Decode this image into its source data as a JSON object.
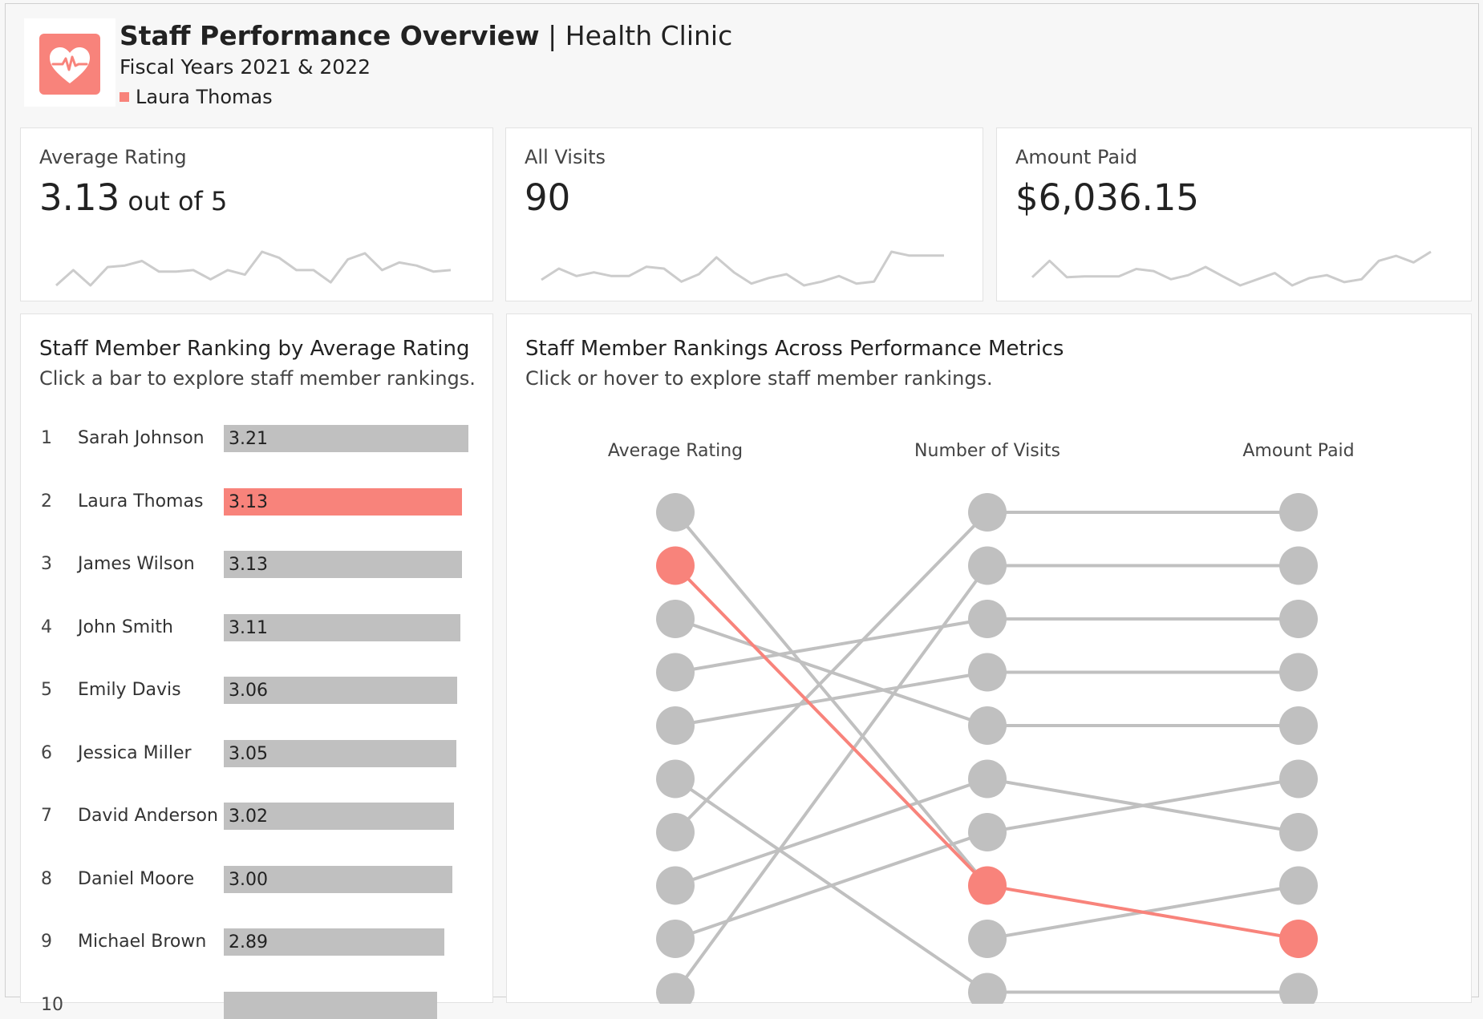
{
  "header": {
    "title_bold": "Staff Performance Overview",
    "title_rest": " | Health Clinic",
    "subtitle": "Fiscal Years 2021 & 2022",
    "selected_staff": "Laura Thomas",
    "logo_icon": "heart-pulse-icon",
    "accent_color": "#f8837b"
  },
  "kpis": [
    {
      "label": "Average Rating",
      "value": "3.13",
      "unit": " out of 5",
      "trend": [
        3.0,
        3.1,
        3.0,
        3.12,
        3.13,
        3.16,
        3.09,
        3.09,
        3.1,
        3.04,
        3.1,
        3.07,
        3.22,
        3.18,
        3.1,
        3.1,
        3.02,
        3.17,
        3.21,
        3.1,
        3.15,
        3.13,
        3.09,
        3.1
      ]
    },
    {
      "label": "All Visits",
      "value": "90",
      "unit": "",
      "trend": [
        3.7,
        4.3,
        3.9,
        4.1,
        3.9,
        3.9,
        4.4,
        4.3,
        3.6,
        4.0,
        4.9,
        4.1,
        3.5,
        3.8,
        4.0,
        3.4,
        3.6,
        3.9,
        3.5,
        3.6,
        5.2,
        5.0,
        5.0,
        5.0
      ]
    },
    {
      "label": "Amount Paid",
      "value": "$6,036.15",
      "unit": "",
      "trend": [
        260,
        300,
        260,
        262,
        262,
        262,
        280,
        275,
        255,
        265,
        285,
        262,
        240,
        255,
        270,
        240,
        258,
        265,
        248,
        255,
        300,
        312,
        296,
        322
      ]
    }
  ],
  "ranking_panel": {
    "title": "Staff Member Ranking by Average Rating",
    "subtitle": "Click a bar to explore staff member rankings.",
    "rows": [
      {
        "rank": "1",
        "name": "Sarah Johnson",
        "value": "3.21",
        "num": 3.21
      },
      {
        "rank": "2",
        "name": "Laura Thomas",
        "value": "3.13",
        "num": 3.13,
        "selected": true
      },
      {
        "rank": "3",
        "name": "James Wilson",
        "value": "3.13",
        "num": 3.13
      },
      {
        "rank": "4",
        "name": "John Smith",
        "value": "3.11",
        "num": 3.11
      },
      {
        "rank": "5",
        "name": "Emily Davis",
        "value": "3.06",
        "num": 3.06
      },
      {
        "rank": "6",
        "name": "Jessica Miller",
        "value": "3.05",
        "num": 3.05
      },
      {
        "rank": "7",
        "name": "David Anderson",
        "value": "3.02",
        "num": 3.02
      },
      {
        "rank": "8",
        "name": "Daniel Moore",
        "value": "3.00",
        "num": 3.0
      },
      {
        "rank": "9",
        "name": "Michael Brown",
        "value": "2.89",
        "num": 2.89
      },
      {
        "rank": "10",
        "name": "",
        "value": "",
        "num": 2.8
      }
    ]
  },
  "slope_panel": {
    "title": "Staff Member Rankings Across Performance Metrics",
    "subtitle": "Click or hover to explore staff member rankings.",
    "axes": [
      "Average Rating",
      "Number of Visits",
      "Amount Paid"
    ],
    "gray_color": "#c0c0c0",
    "links_rating_to_visits": [
      [
        1,
        8
      ],
      [
        2,
        8
      ],
      [
        3,
        5
      ],
      [
        4,
        3
      ],
      [
        5,
        4
      ],
      [
        6,
        10
      ],
      [
        7,
        1
      ],
      [
        8,
        6
      ],
      [
        9,
        7
      ],
      [
        10,
        2
      ]
    ],
    "links_visits_to_paid": [
      [
        1,
        1
      ],
      [
        2,
        2
      ],
      [
        3,
        3
      ],
      [
        4,
        4
      ],
      [
        5,
        5
      ],
      [
        6,
        7
      ],
      [
        7,
        6
      ],
      [
        8,
        9
      ],
      [
        9,
        8
      ],
      [
        10,
        10
      ]
    ],
    "selected_path": [
      2,
      8,
      9
    ]
  }
}
